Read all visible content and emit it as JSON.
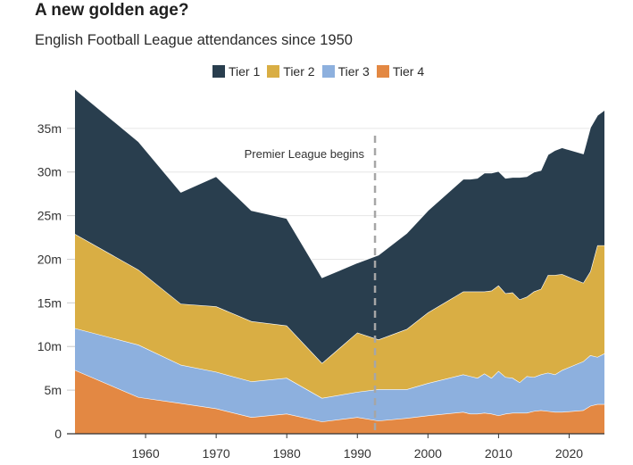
{
  "chart_data": {
    "type": "area",
    "stacked": true,
    "title": "A new golden age?",
    "subtitle": "English Football League attendances since 1950",
    "xlabel": "",
    "ylabel": "",
    "xlim": [
      1950,
      2025
    ],
    "ylim": [
      0,
      38
    ],
    "grid": "horizontal",
    "legend_position": "top-center",
    "x_ticks": [
      1960,
      1970,
      1980,
      1990,
      2000,
      2010,
      2020
    ],
    "y_ticks": [
      {
        "value": 0,
        "label": "0"
      },
      {
        "value": 5,
        "label": "5m"
      },
      {
        "value": 10,
        "label": "10m"
      },
      {
        "value": 15,
        "label": "15m"
      },
      {
        "value": 20,
        "label": "20m"
      },
      {
        "value": 25,
        "label": "25m"
      },
      {
        "value": 30,
        "label": "30m"
      },
      {
        "value": 35,
        "label": "35m"
      }
    ],
    "x": [
      1950,
      1959,
      1965,
      1970,
      1975,
      1980,
      1985,
      1990,
      1993,
      1997,
      2000,
      2005,
      2006,
      2007,
      2008,
      2009,
      2010,
      2011,
      2012,
      2013,
      2014,
      2015,
      2016,
      2017,
      2018,
      2019,
      2022,
      2023,
      2024,
      2025
    ],
    "series": [
      {
        "name": "Tier 4",
        "color": "#e38843",
        "values": [
          7.3,
          4.2,
          3.5,
          2.9,
          1.9,
          2.3,
          1.4,
          1.9,
          1.5,
          1.8,
          2.1,
          2.5,
          2.3,
          2.3,
          2.4,
          2.3,
          2.1,
          2.3,
          2.4,
          2.4,
          2.4,
          2.6,
          2.7,
          2.6,
          2.5,
          2.5,
          2.7,
          3.2,
          3.4,
          3.4
        ]
      },
      {
        "name": "Tier 3",
        "color": "#8db0de",
        "values": [
          4.8,
          6.0,
          4.4,
          4.2,
          4.1,
          4.1,
          2.7,
          2.9,
          3.6,
          3.3,
          3.7,
          4.3,
          4.3,
          4.1,
          4.5,
          4.1,
          5.1,
          4.2,
          4.0,
          3.5,
          4.2,
          3.9,
          4.1,
          4.4,
          4.3,
          4.8,
          5.6,
          5.8,
          5.4,
          5.8
        ]
      },
      {
        "name": "Tier 2",
        "color": "#d9ae44",
        "values": [
          10.8,
          8.6,
          7.0,
          7.5,
          6.9,
          6.0,
          4.0,
          6.8,
          5.7,
          6.9,
          8.1,
          9.5,
          9.7,
          9.9,
          9.4,
          10.0,
          9.8,
          9.6,
          9.8,
          9.5,
          9.1,
          9.8,
          9.8,
          11.2,
          11.4,
          11.0,
          9.0,
          9.6,
          12.8,
          12.4
        ]
      },
      {
        "name": "Tier 1",
        "color": "#293e4e",
        "values": [
          16.6,
          14.7,
          12.8,
          14.9,
          12.7,
          12.3,
          9.8,
          8.0,
          9.7,
          11.0,
          11.7,
          12.9,
          12.9,
          13.0,
          13.6,
          13.5,
          13.1,
          13.2,
          13.2,
          14.0,
          13.8,
          13.7,
          13.6,
          13.8,
          14.3,
          14.5,
          14.8,
          16.5,
          14.9,
          15.5
        ]
      }
    ],
    "annotations": [
      {
        "type": "vertical-dashed-line",
        "x": 1992.5,
        "label": "Premier League begins",
        "color": "#a6a6a6"
      }
    ]
  }
}
